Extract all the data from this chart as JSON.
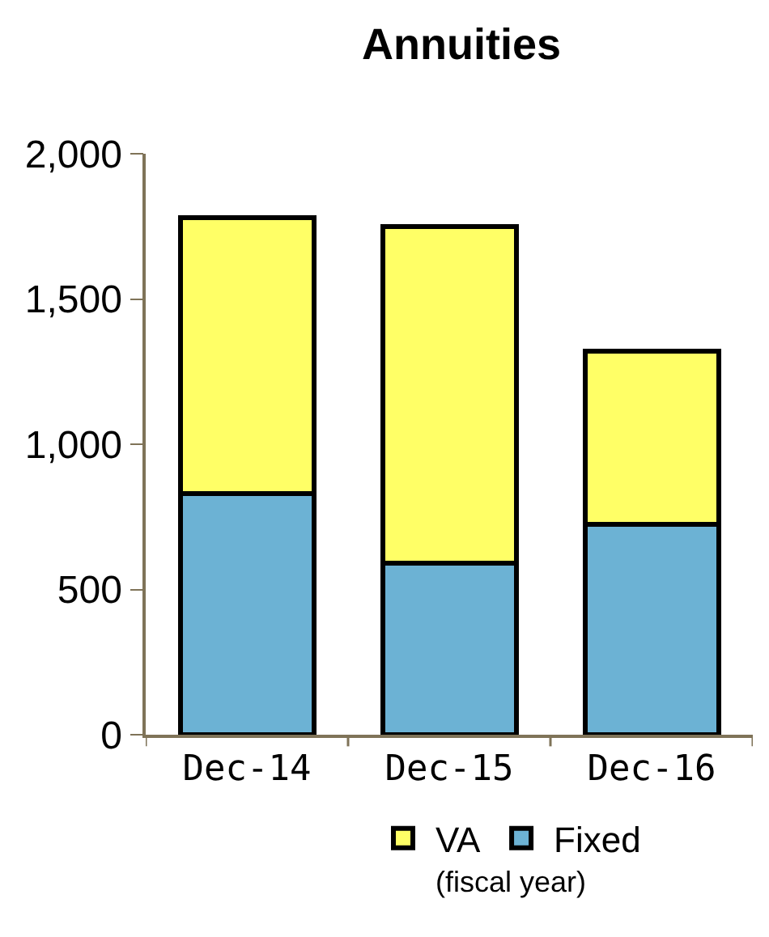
{
  "chart_data": {
    "type": "bar",
    "title": "Annuities",
    "xlabel": "(fiscal year)",
    "stacked": true,
    "categories": [
      "Dec-14",
      "Dec-15",
      "Dec-16"
    ],
    "series": [
      {
        "name": "Fixed",
        "color": "#6cb2d4",
        "values": [
          830,
          590,
          725
        ]
      },
      {
        "name": "VA",
        "color": "#ffff66",
        "values": [
          950,
          1160,
          595
        ]
      }
    ],
    "ylim": [
      0,
      2000
    ],
    "yticks": [
      {
        "value": 0,
        "label": "0"
      },
      {
        "value": 500,
        "label": "500"
      },
      {
        "value": 1000,
        "label": "1,000"
      },
      {
        "value": 1500,
        "label": "1,500"
      },
      {
        "value": 2000,
        "label": "2,000"
      }
    ],
    "legend": "bottom"
  }
}
